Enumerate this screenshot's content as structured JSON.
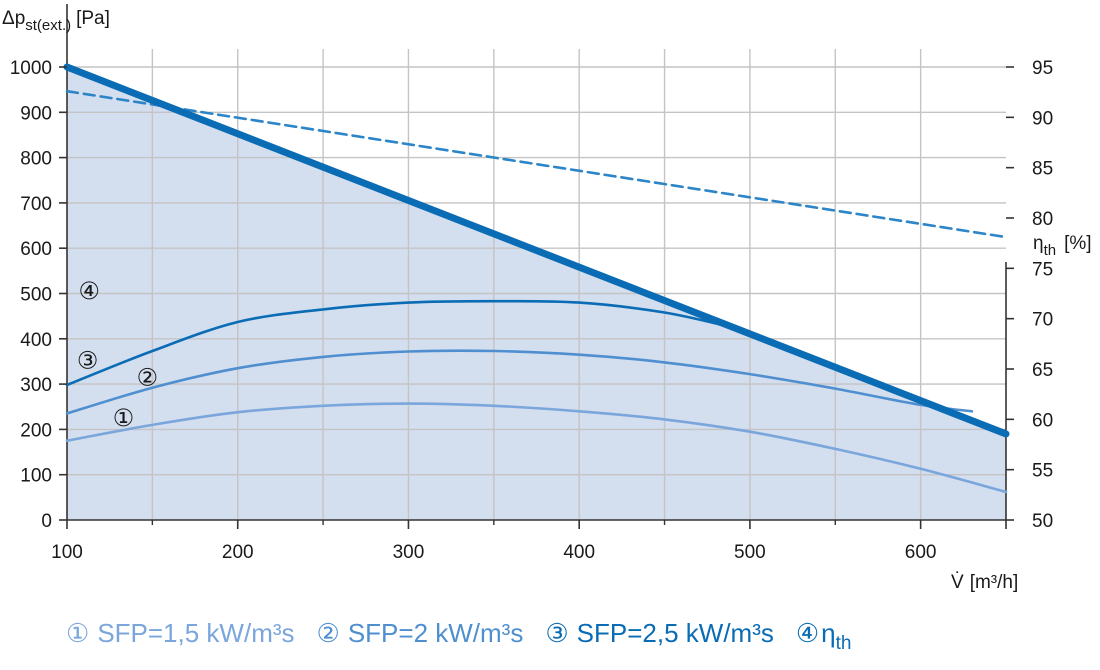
{
  "chart_data": {
    "type": "line",
    "x_axis": {
      "label_symbol": "V̇",
      "label_unit": "[m³/h]",
      "range": [
        100,
        650
      ],
      "ticks": [
        100,
        200,
        300,
        400,
        500,
        600
      ],
      "grid_step": 50
    },
    "y_axis_left": {
      "label_symbol": "Δp",
      "label_sub": "st(ext.)",
      "label_unit": "[Pa]",
      "range": [
        0,
        1000
      ],
      "ticks": [
        0,
        100,
        200,
        300,
        400,
        500,
        600,
        700,
        800,
        900,
        1000
      ]
    },
    "y_axis_right": {
      "label_symbol": "η",
      "label_sub": "th",
      "label_unit": "[%]",
      "range": [
        50,
        95
      ],
      "ticks": [
        50,
        55,
        60,
        65,
        70,
        75,
        80,
        85,
        90,
        95
      ]
    },
    "grid": true,
    "envelope": {
      "color": "#0a6cb4",
      "fill": "#d3deef",
      "x": [
        100,
        650
      ],
      "y": [
        1000,
        190
      ]
    },
    "series": [
      {
        "marker": "①",
        "name": "SFP=1,5 kW/m³s",
        "axis": "left",
        "color": "#7aa6dc",
        "x": [
          100,
          150,
          200,
          250,
          300,
          350,
          400,
          450,
          500,
          550,
          600,
          650
        ],
        "y": [
          175,
          210,
          238,
          252,
          257,
          252,
          240,
          222,
          195,
          157,
          113,
          62
        ]
      },
      {
        "marker": "②",
        "name": "SFP=2 kW/m³s",
        "axis": "left",
        "color": "#4f8fd0",
        "x": [
          100,
          150,
          200,
          250,
          300,
          350,
          400,
          450,
          500,
          550,
          600,
          630
        ],
        "y": [
          235,
          292,
          335,
          360,
          372,
          373,
          365,
          348,
          322,
          290,
          254,
          240
        ]
      },
      {
        "marker": "③",
        "name": "SFP=2,5 kW/m³s",
        "axis": "left",
        "color": "#0a6cb4",
        "x": [
          100,
          150,
          200,
          250,
          300,
          350,
          400,
          450,
          490
        ],
        "y": [
          298,
          373,
          437,
          465,
          480,
          483,
          480,
          458,
          425
        ]
      },
      {
        "marker": "④",
        "name": "η",
        "name_sub": "th",
        "axis": "right",
        "dashed": true,
        "color": "#2b85c8",
        "x": [
          100,
          650
        ],
        "y": [
          92.6,
          78.1
        ]
      }
    ],
    "curve_labels": [
      {
        "text": "①",
        "x": 133,
        "y": 225
      },
      {
        "text": "②",
        "x": 147,
        "y": 315
      },
      {
        "text": "③",
        "x": 112,
        "y": 352
      },
      {
        "text": "④",
        "x": 113,
        "y": 505
      }
    ]
  }
}
